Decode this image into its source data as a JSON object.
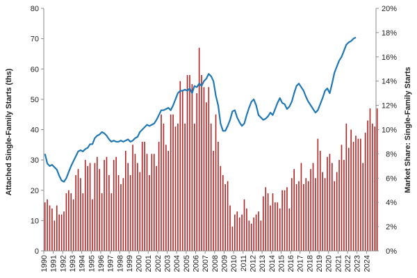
{
  "chart_data": {
    "type": "bar+line",
    "colors": {
      "bars": "#b22222",
      "line": "#1f77b4",
      "axis": "#888888"
    },
    "grid": false,
    "legend": "none",
    "x_tick_labels": [
      "1990",
      "1991",
      "1992",
      "1993",
      "1994",
      "1995",
      "1996",
      "1997",
      "1998",
      "1999",
      "2000",
      "2001",
      "2002",
      "2003",
      "2004",
      "2005",
      "2006",
      "2007",
      "2008",
      "2009",
      "2010",
      "2011",
      "2012",
      "2013",
      "2014",
      "2015",
      "2016",
      "2017",
      "2018",
      "2019",
      "2020",
      "2021",
      "2022",
      "2023",
      "2024"
    ],
    "y_left": {
      "label": "Attached Single-Family Starts (ths)",
      "lim": [
        0,
        80
      ],
      "ticks": [
        "0",
        "10",
        "20",
        "30",
        "40",
        "50",
        "60",
        "70",
        "80"
      ]
    },
    "y_right": {
      "label": "Market Share: Single-Family Starts",
      "lim": [
        0,
        20
      ],
      "ticks": [
        "0%",
        "2%",
        "4%",
        "6%",
        "8%",
        "10%",
        "12%",
        "14%",
        "16%",
        "18%",
        "20%"
      ]
    },
    "series": [
      {
        "kind": "bar",
        "axis": "left",
        "x_start_year": 1990,
        "x_step": 0.25,
        "values": [
          16,
          17,
          15,
          14,
          10,
          15,
          12,
          12,
          13,
          19,
          20,
          19,
          17,
          25,
          27,
          24,
          19,
          30,
          28,
          29,
          17,
          29,
          31,
          27,
          19,
          30,
          31,
          25,
          19,
          30,
          31,
          25,
          22,
          24,
          33,
          29,
          25,
          35,
          32,
          29,
          26,
          36,
          36,
          32,
          25,
          32,
          32,
          28,
          36,
          45,
          42,
          35,
          33,
          45,
          45,
          41,
          42,
          56,
          53,
          42,
          58,
          58,
          55,
          42,
          52,
          67,
          58,
          54,
          49,
          54,
          42,
          33,
          45,
          36,
          28,
          25,
          22,
          23,
          15,
          8,
          12,
          13,
          11,
          12,
          17,
          14,
          10,
          9,
          11,
          12,
          13,
          10,
          18,
          21,
          19,
          15,
          19,
          16,
          16,
          14,
          20,
          20,
          21,
          14,
          24,
          27,
          22,
          23,
          29,
          22,
          24,
          23,
          27,
          29,
          24,
          37,
          33,
          26,
          24,
          31,
          32,
          29,
          23,
          26,
          30,
          35,
          30,
          42,
          34,
          40,
          36,
          38,
          37,
          37,
          29,
          39,
          43,
          47,
          42,
          41,
          47
        ]
      },
      {
        "kind": "line",
        "axis": "right",
        "x_start_year": 1990,
        "x_step": 0.25,
        "values": [
          8.0,
          7.2,
          7.0,
          7.1,
          6.9,
          6.7,
          6.2,
          5.8,
          5.7,
          6.0,
          6.5,
          7.0,
          7.4,
          7.8,
          8.2,
          8.3,
          8.2,
          8.4,
          8.5,
          8.8,
          8.8,
          9.3,
          9.5,
          9.6,
          9.8,
          9.7,
          9.5,
          9.2,
          9.0,
          9.1,
          9.0,
          9.0,
          9.1,
          9.0,
          9.1,
          9.2,
          9.0,
          9.1,
          9.3,
          9.4,
          9.8,
          10.0,
          10.2,
          10.4,
          10.3,
          10.4,
          10.5,
          10.8,
          11.2,
          11.6,
          11.6,
          11.7,
          11.8,
          11.6,
          12.0,
          12.5,
          13.0,
          13.2,
          13.2,
          13.3,
          13.2,
          13.4,
          13.0,
          13.6,
          13.5,
          13.8,
          13.6,
          14.0,
          14.2,
          14.6,
          14.4,
          14.0,
          12.8,
          12.0,
          10.5,
          9.9,
          9.9,
          10.3,
          10.8,
          11.5,
          11.6,
          11.0,
          10.6,
          10.3,
          10.5,
          11.2,
          11.8,
          12.3,
          12.5,
          12.0,
          11.2,
          11.0,
          10.8,
          10.9,
          11.1,
          11.4,
          11.2,
          11.7,
          12.2,
          12.6,
          12.2,
          12.1,
          11.7,
          11.9,
          12.3,
          13.0,
          13.6,
          13.8,
          13.5,
          13.2,
          12.7,
          12.3,
          12.0,
          11.7,
          11.4,
          11.6,
          12.1,
          12.6,
          13.2,
          13.4,
          13.0,
          13.8,
          14.7,
          15.2,
          15.7,
          16.0,
          16.5,
          17.0,
          17.2,
          17.3,
          17.5,
          17.6
        ]
      }
    ]
  }
}
